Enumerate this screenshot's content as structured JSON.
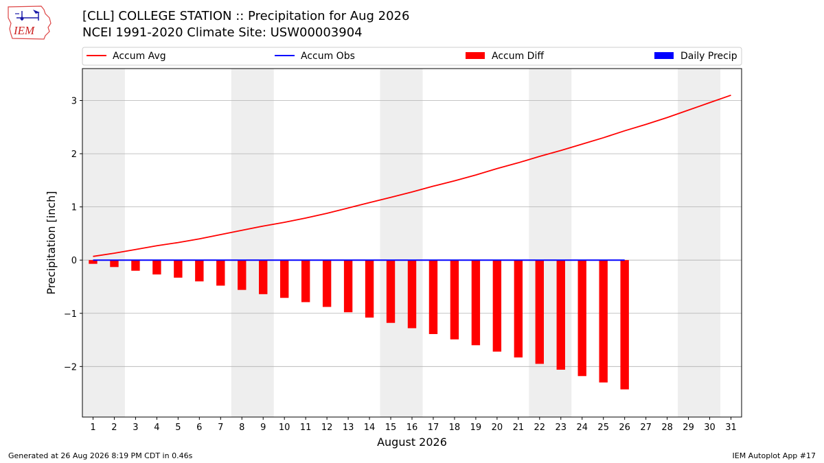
{
  "header": {
    "title": "[CLL] COLLEGE STATION :: Precipitation for Aug 2026",
    "subtitle": "NCEI 1991-2020 Climate Site: USW00003904",
    "logo_text": "IEM"
  },
  "footer": {
    "generated": "Generated at 26 Aug 2026 8:19 PM CDT in 0.46s",
    "app": "IEM Autoplot App #17"
  },
  "colors": {
    "avg": "#ff0000",
    "obs": "#0000ff",
    "diff": "#ff0000",
    "daily": "#0000ff",
    "weekend_band": "#eeeeee",
    "grid": "#b0b0b0"
  },
  "chart_data": {
    "type": "bar",
    "title": "[CLL] COLLEGE STATION :: Precipitation for Aug 2026",
    "xlabel": "August 2026",
    "ylabel": "Precipitation [inch]",
    "xlim": [
      0.5,
      31.5
    ],
    "ylim": [
      -2.95,
      3.6
    ],
    "yticks": [
      -2,
      -1,
      0,
      1,
      2,
      3
    ],
    "ytick_labels": [
      "−2",
      "−1",
      "0",
      "1",
      "2",
      "3"
    ],
    "days": [
      1,
      2,
      3,
      4,
      5,
      6,
      7,
      8,
      9,
      10,
      11,
      12,
      13,
      14,
      15,
      16,
      17,
      18,
      19,
      20,
      21,
      22,
      23,
      24,
      25,
      26,
      27,
      28,
      29,
      30,
      31
    ],
    "grid": "y",
    "legend_position": "top",
    "weekend_bands": [
      [
        0.5,
        2.5
      ],
      [
        7.5,
        9.5
      ],
      [
        14.5,
        16.5
      ],
      [
        21.5,
        23.5
      ],
      [
        28.5,
        30.5
      ]
    ],
    "series": [
      {
        "name": "Accum Avg",
        "kind": "line",
        "x": [
          1,
          2,
          3,
          4,
          5,
          6,
          7,
          8,
          9,
          10,
          11,
          12,
          13,
          14,
          15,
          16,
          17,
          18,
          19,
          20,
          21,
          22,
          23,
          24,
          25,
          26,
          27,
          28,
          29,
          30,
          31
        ],
        "values": [
          0.07,
          0.13,
          0.2,
          0.27,
          0.33,
          0.4,
          0.48,
          0.56,
          0.64,
          0.71,
          0.79,
          0.88,
          0.98,
          1.08,
          1.18,
          1.28,
          1.39,
          1.49,
          1.6,
          1.72,
          1.83,
          1.95,
          2.06,
          2.18,
          2.3,
          2.43,
          2.55,
          2.68,
          2.82,
          2.96,
          3.1
        ]
      },
      {
        "name": "Accum Obs",
        "kind": "line",
        "x": [
          1,
          2,
          3,
          4,
          5,
          6,
          7,
          8,
          9,
          10,
          11,
          12,
          13,
          14,
          15,
          16,
          17,
          18,
          19,
          20,
          21,
          22,
          23,
          24,
          25,
          26
        ],
        "values": [
          0,
          0,
          0,
          0,
          0,
          0,
          0,
          0,
          0,
          0,
          0,
          0,
          0,
          0,
          0,
          0,
          0,
          0,
          0,
          0,
          0,
          0,
          0,
          0,
          0,
          0
        ]
      },
      {
        "name": "Accum Diff",
        "kind": "bar",
        "x": [
          1,
          2,
          3,
          4,
          5,
          6,
          7,
          8,
          9,
          10,
          11,
          12,
          13,
          14,
          15,
          16,
          17,
          18,
          19,
          20,
          21,
          22,
          23,
          24,
          25,
          26
        ],
        "values": [
          -0.07,
          -0.13,
          -0.2,
          -0.27,
          -0.33,
          -0.4,
          -0.48,
          -0.56,
          -0.64,
          -0.71,
          -0.79,
          -0.88,
          -0.98,
          -1.08,
          -1.18,
          -1.28,
          -1.39,
          -1.49,
          -1.6,
          -1.72,
          -1.83,
          -1.95,
          -2.06,
          -2.18,
          -2.3,
          -2.43
        ]
      },
      {
        "name": "Daily Precip",
        "kind": "bar",
        "x": [
          1,
          2,
          3,
          4,
          5,
          6,
          7,
          8,
          9,
          10,
          11,
          12,
          13,
          14,
          15,
          16,
          17,
          18,
          19,
          20,
          21,
          22,
          23,
          24,
          25,
          26
        ],
        "values": [
          0,
          0,
          0,
          0,
          0,
          0,
          0,
          0,
          0,
          0,
          0,
          0,
          0,
          0,
          0,
          0,
          0,
          0,
          0,
          0,
          0,
          0,
          0,
          0,
          0,
          0
        ]
      }
    ]
  }
}
